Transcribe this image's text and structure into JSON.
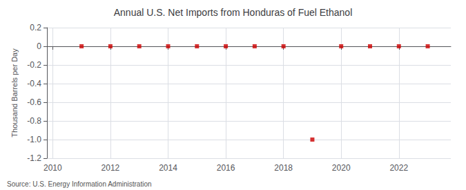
{
  "chart_data": {
    "type": "scatter",
    "title": "Annual U.S. Net Imports from Honduras of Fuel Ethanol",
    "ylabel": "Thousand Barrels per Day",
    "annotations": [
      "Source: U.S. Energy Information Administration"
    ],
    "x": [
      2011,
      2012,
      2013,
      2014,
      2015,
      2016,
      2017,
      2018,
      2019,
      2020,
      2021,
      2022,
      2023
    ],
    "values": [
      0,
      0,
      0,
      0,
      0,
      0,
      0,
      0,
      -1.0,
      0,
      0,
      0,
      0
    ],
    "color": "#cc0000",
    "marker": "square",
    "xlim": [
      2009.8,
      2023.8
    ],
    "xticks": [
      2010,
      2012,
      2014,
      2016,
      2018,
      2020,
      2022
    ],
    "ylim": [
      -1.2,
      0.2
    ],
    "yticks": [
      0.2,
      0,
      -0.2,
      -0.4,
      -0.6,
      -0.8,
      {
        "value": -1.0,
        "label": "-1.0"
      },
      -1.2
    ],
    "grid": true
  }
}
